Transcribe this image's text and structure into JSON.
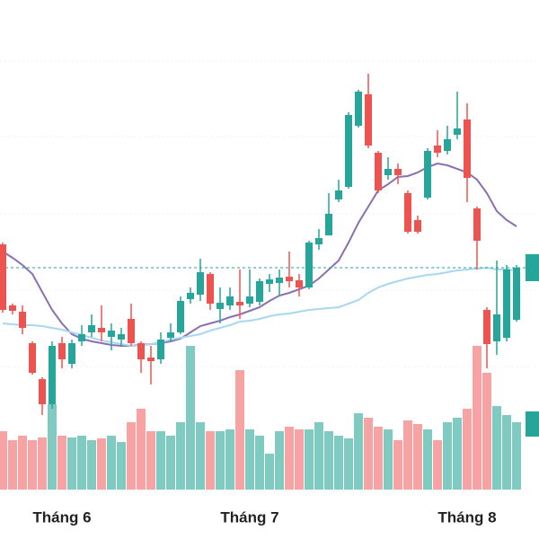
{
  "chart_data": {
    "type": "candlestick",
    "categories": [
      null,
      null,
      null,
      null,
      null,
      null,
      "Tháng 6",
      null,
      null,
      null,
      null,
      null,
      null,
      null,
      null,
      null,
      null,
      null,
      null,
      null,
      null,
      null,
      null,
      null,
      null,
      "Tháng 7",
      null,
      null,
      null,
      null,
      null,
      null,
      null,
      null,
      null,
      null,
      null,
      null,
      null,
      null,
      null,
      null,
      null,
      null,
      null,
      null,
      null,
      "Tháng 8",
      null,
      null,
      null,
      null,
      null
    ],
    "open": [
      328,
      260,
      253,
      218,
      178,
      150,
      218,
      195,
      220,
      230,
      235,
      225,
      222,
      245,
      218,
      202,
      200,
      224,
      230,
      267,
      272,
      295,
      256,
      260,
      264,
      262,
      264,
      284,
      285,
      292,
      288,
      280,
      328,
      338,
      378,
      392,
      460,
      495,
      430,
      405,
      412,
      385,
      355,
      380,
      438,
      432,
      450,
      467,
      368,
      255,
      220,
      224,
      244
    ],
    "high": [
      330,
      262,
      260,
      220,
      180,
      220,
      225,
      222,
      238,
      250,
      260,
      240,
      235,
      262,
      220,
      215,
      230,
      240,
      270,
      280,
      312,
      297,
      280,
      280,
      300,
      300,
      290,
      295,
      300,
      320,
      295,
      332,
      345,
      385,
      400,
      475,
      500,
      518,
      432,
      425,
      418,
      388,
      360,
      435,
      455,
      460,
      498,
      485,
      370,
      258,
      310,
      305,
      305
    ],
    "low": [
      252,
      250,
      228,
      183,
      138,
      145,
      190,
      190,
      215,
      225,
      220,
      210,
      215,
      215,
      185,
      172,
      195,
      220,
      228,
      262,
      265,
      255,
      240,
      255,
      245,
      258,
      260,
      275,
      270,
      280,
      270,
      278,
      322,
      338,
      375,
      390,
      458,
      435,
      385,
      400,
      395,
      340,
      340,
      378,
      425,
      428,
      445,
      375,
      300,
      190,
      205,
      220,
      242
    ],
    "close": [
      255,
      254,
      235,
      185,
      150,
      215,
      200,
      218,
      228,
      238,
      230,
      232,
      228,
      218,
      200,
      198,
      222,
      230,
      265,
      274,
      297,
      262,
      263,
      270,
      260,
      270,
      287,
      289,
      291,
      287,
      280,
      330,
      335,
      362,
      388,
      472,
      498,
      438,
      388,
      412,
      405,
      342,
      342,
      432,
      430,
      445,
      457,
      402,
      332,
      217,
      250,
      300,
      302
    ],
    "volume": [
      65,
      55,
      60,
      55,
      58,
      95,
      60,
      58,
      60,
      55,
      57,
      60,
      53,
      75,
      90,
      65,
      65,
      60,
      75,
      160,
      75,
      65,
      65,
      67,
      133,
      67,
      60,
      40,
      65,
      70,
      67,
      67,
      75,
      65,
      60,
      57,
      85,
      80,
      70,
      67,
      55,
      77,
      73,
      67,
      55,
      75,
      80,
      90,
      160,
      130,
      93,
      83,
      75
    ],
    "series": [
      {
        "color": "#8b6fb0",
        "values": [
          320,
          313,
          305,
          295,
          275,
          255,
          240,
          228,
          223,
          220,
          218,
          216,
          215,
          215,
          216,
          217,
          218,
          220,
          223,
          230,
          237,
          240,
          243,
          247,
          250,
          254,
          258,
          265,
          271,
          274,
          278,
          282,
          290,
          300,
          310,
          330,
          352,
          370,
          388,
          395,
          403,
          404,
          408,
          414,
          418,
          416,
          412,
          408,
          400,
          385,
          365,
          355,
          348
        ]
      },
      {
        "color": "#a8d8f0",
        "values": [
          240,
          239,
          238,
          238,
          237,
          235,
          233,
          230,
          227,
          224,
          221,
          219,
          217,
          215,
          215,
          217,
          219,
          222,
          224,
          226,
          228,
          232,
          235,
          238,
          242,
          243,
          245,
          248,
          250,
          251,
          253,
          255,
          256,
          257,
          258,
          262,
          266,
          274,
          280,
          284,
          287,
          290,
          292,
          294,
          295,
          297,
          299,
          300,
          301,
          302,
          300,
          300,
          299
        ]
      }
    ],
    "up_color": "#26a69a",
    "down_color": "#ef5350",
    "up_volume_color": "#7fcbc1",
    "down_volume_color": "#f7a3a3",
    "ylim": [
      0,
      600
    ],
    "yticks": [
      532,
      448,
      362,
      277,
      192
    ],
    "grid": true,
    "volume_ylim": [
      0,
      545
    ]
  }
}
